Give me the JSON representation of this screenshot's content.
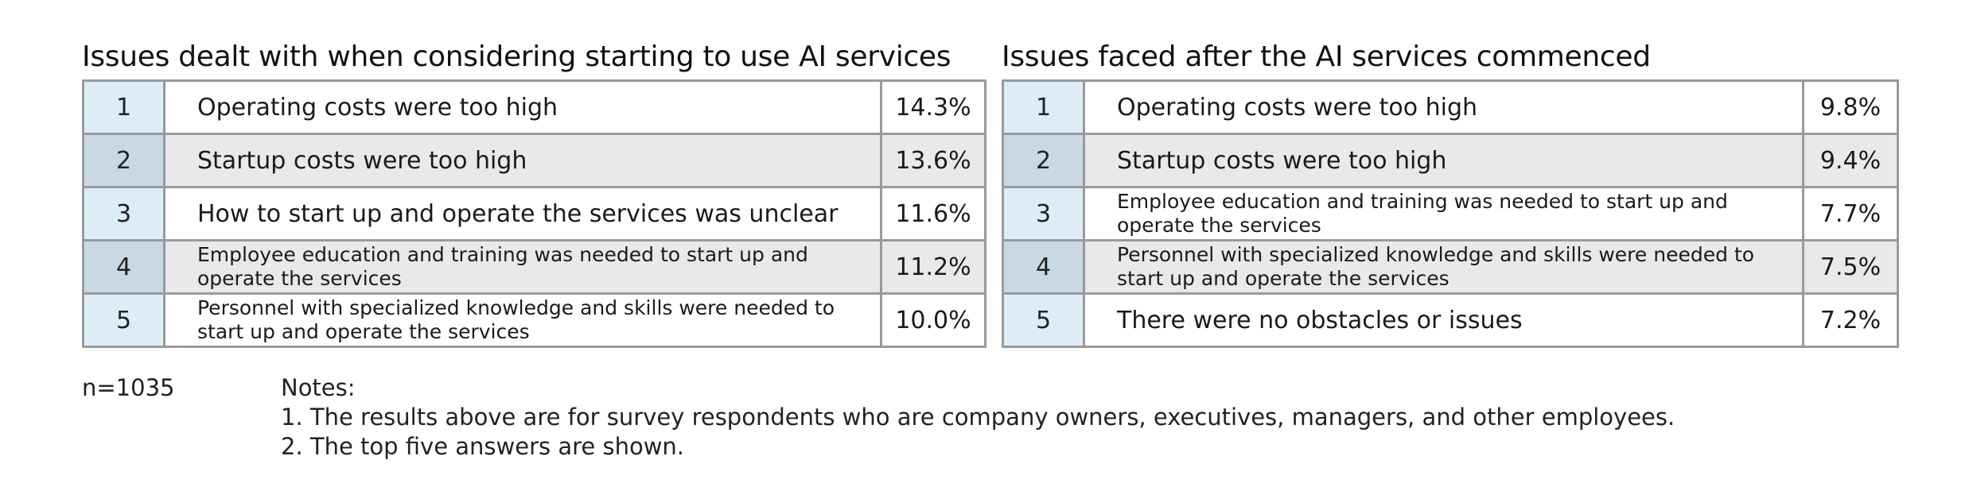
{
  "chart_data": [
    {
      "type": "table",
      "title": "Issues dealt with when considering starting to use AI services",
      "rows": [
        {
          "rank": "1",
          "issue": "Operating costs were too high",
          "value": 14.3,
          "label": "14.3%",
          "lines": 1
        },
        {
          "rank": "2",
          "issue": "Startup costs were too high",
          "value": 13.6,
          "label": "13.6%",
          "lines": 1
        },
        {
          "rank": "3",
          "issue": "How to start up and operate the services was unclear",
          "value": 11.6,
          "label": "11.6%",
          "lines": 1
        },
        {
          "rank": "4",
          "issue": "Employee education and training was needed to start up and operate the services",
          "value": 11.2,
          "label": "11.2%",
          "lines": 2
        },
        {
          "rank": "5",
          "issue": "Personnel with specialized knowledge and skills were needed to start up and operate the services",
          "value": 10.0,
          "label": "10.0%",
          "lines": 2
        }
      ]
    },
    {
      "type": "table",
      "title": "Issues faced after the AI services commenced",
      "rows": [
        {
          "rank": "1",
          "issue": "Operating costs were too high",
          "value": 9.8,
          "label": "9.8%",
          "lines": 1
        },
        {
          "rank": "2",
          "issue": "Startup costs were too high",
          "value": 9.4,
          "label": "9.4%",
          "lines": 1
        },
        {
          "rank": "3",
          "issue": "Employee education and training was needed to start up and operate the services",
          "value": 7.7,
          "label": "7.7%",
          "lines": 2
        },
        {
          "rank": "4",
          "issue": "Personnel with specialized knowledge and skills were needed to start up and operate the services",
          "value": 7.5,
          "label": "7.5%",
          "lines": 2
        },
        {
          "rank": "5",
          "issue": "There were no obstacles or issues",
          "value": 7.2,
          "label": "7.2%",
          "lines": 1
        }
      ]
    }
  ],
  "footer": {
    "n": "n=1035",
    "notes_heading": "Notes:",
    "notes": [
      "1. The results above are for survey respondents who are company owners, executives, managers, and other employees.",
      "2. The top five answers are shown."
    ]
  },
  "colors": {
    "rank_cell_odd": "#dcedf8",
    "rank_cell_even": "#c8d9e3",
    "row_even": "#e9e9e9",
    "border": "#9a9a9a"
  }
}
